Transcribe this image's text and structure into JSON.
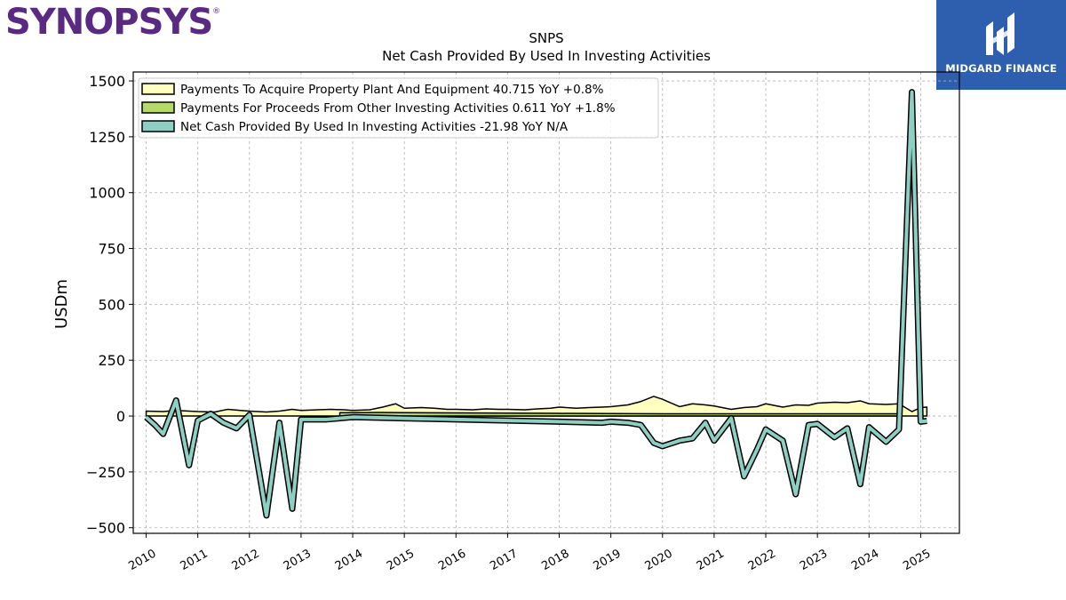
{
  "brand": {
    "logo_text": "SYNOPSYS",
    "trademark": "®"
  },
  "badge": {
    "name": "MIDGARD FINANCE",
    "bg_color": "#2d5fae"
  },
  "chart_data": {
    "type": "area",
    "title": "SNPS",
    "subtitle": "Net Cash Provided By Used In Investing Activities",
    "ylabel": "USDm",
    "xlabel": "",
    "xlim": [
      2009.75,
      2025.75
    ],
    "ylim": [
      -525,
      1540
    ],
    "grid": true,
    "legend_position": "top-left",
    "yticks": [
      1500,
      1250,
      1000,
      750,
      500,
      250,
      0,
      -250,
      -500
    ],
    "ytick_labels": [
      "1500",
      "1250",
      "1000",
      "750",
      "500",
      "250",
      "0",
      "−250",
      "−500"
    ],
    "xticks": [
      2010,
      2011,
      2012,
      2013,
      2014,
      2015,
      2016,
      2017,
      2018,
      2019,
      2020,
      2021,
      2022,
      2023,
      2024,
      2025
    ],
    "xtick_labels": [
      "2010",
      "2011",
      "2012",
      "2013",
      "2014",
      "2015",
      "2016",
      "2017",
      "2018",
      "2019",
      "2020",
      "2021",
      "2022",
      "2023",
      "2024",
      "2025"
    ],
    "series": [
      {
        "name": "Payments To Acquire Property Plant And Equipment",
        "legend_label": "Payments To Acquire Property Plant And Equipment  40.715 YoY +0.8%",
        "color": "#ffffc0",
        "points": [
          [
            2010.0,
            22
          ],
          [
            2010.33,
            20
          ],
          [
            2010.58,
            25
          ],
          [
            2010.83,
            22
          ],
          [
            2011.0,
            20
          ],
          [
            2011.33,
            18
          ],
          [
            2011.58,
            30
          ],
          [
            2011.83,
            25
          ],
          [
            2012.0,
            22
          ],
          [
            2012.33,
            18
          ],
          [
            2012.58,
            22
          ],
          [
            2012.83,
            30
          ],
          [
            2013.0,
            25
          ],
          [
            2013.33,
            28
          ],
          [
            2013.58,
            30
          ],
          [
            2013.83,
            28
          ],
          [
            2014.0,
            25
          ],
          [
            2014.33,
            28
          ],
          [
            2014.58,
            40
          ],
          [
            2014.83,
            55
          ],
          [
            2015.0,
            35
          ],
          [
            2015.33,
            38
          ],
          [
            2015.58,
            35
          ],
          [
            2015.83,
            30
          ],
          [
            2016.0,
            30
          ],
          [
            2016.33,
            28
          ],
          [
            2016.58,
            32
          ],
          [
            2016.83,
            30
          ],
          [
            2017.0,
            30
          ],
          [
            2017.33,
            28
          ],
          [
            2017.58,
            32
          ],
          [
            2017.83,
            35
          ],
          [
            2018.0,
            40
          ],
          [
            2018.33,
            35
          ],
          [
            2018.58,
            38
          ],
          [
            2018.83,
            40
          ],
          [
            2019.0,
            42
          ],
          [
            2019.33,
            50
          ],
          [
            2019.58,
            65
          ],
          [
            2019.83,
            88
          ],
          [
            2020.0,
            75
          ],
          [
            2020.33,
            42
          ],
          [
            2020.58,
            55
          ],
          [
            2020.83,
            50
          ],
          [
            2021.0,
            45
          ],
          [
            2021.33,
            30
          ],
          [
            2021.58,
            38
          ],
          [
            2021.83,
            42
          ],
          [
            2022.0,
            55
          ],
          [
            2022.33,
            40
          ],
          [
            2022.58,
            50
          ],
          [
            2022.83,
            48
          ],
          [
            2023.0,
            58
          ],
          [
            2023.33,
            62
          ],
          [
            2023.58,
            60
          ],
          [
            2023.83,
            68
          ],
          [
            2024.0,
            55
          ],
          [
            2024.33,
            52
          ],
          [
            2024.58,
            55
          ],
          [
            2024.83,
            20
          ],
          [
            2025.0,
            38
          ],
          [
            2025.12,
            40
          ]
        ]
      },
      {
        "name": "Payments For Proceeds From Other Investing Activities",
        "legend_label": "Payments For Proceeds From Other Investing Activities  0.611 YoY +1.8%",
        "color": "#b5d96b",
        "points": [
          [
            2013.75,
            0
          ],
          [
            2013.75,
            15
          ],
          [
            2014.0,
            15
          ],
          [
            2014.5,
            16
          ],
          [
            2015.0,
            15
          ],
          [
            2016.0,
            14
          ],
          [
            2017.0,
            13
          ],
          [
            2018.0,
            12
          ],
          [
            2019.0,
            11
          ],
          [
            2020.0,
            10
          ],
          [
            2021.0,
            10
          ],
          [
            2022.0,
            10
          ],
          [
            2023.0,
            10
          ],
          [
            2024.0,
            10
          ],
          [
            2024.58,
            10
          ],
          [
            2024.58,
            0
          ]
        ]
      },
      {
        "name": "Net Cash Provided By Used In Investing Activities",
        "legend_label": "Net Cash Provided By Used In Investing Activities  -21.98 YoY N/A",
        "color": "#8ecfc3",
        "points": [
          [
            2010.0,
            -5
          ],
          [
            2010.17,
            -40
          ],
          [
            2010.33,
            -80
          ],
          [
            2010.58,
            70
          ],
          [
            2010.83,
            -220
          ],
          [
            2011.0,
            -20
          ],
          [
            2011.25,
            10
          ],
          [
            2011.5,
            -30
          ],
          [
            2011.75,
            -55
          ],
          [
            2012.0,
            5
          ],
          [
            2012.33,
            -445
          ],
          [
            2012.58,
            -30
          ],
          [
            2012.83,
            -415
          ],
          [
            2013.0,
            -15
          ],
          [
            2013.5,
            -15
          ],
          [
            2013.75,
            -10
          ],
          [
            2014.0,
            -5
          ],
          [
            2015.0,
            -10
          ],
          [
            2016.0,
            -15
          ],
          [
            2017.0,
            -20
          ],
          [
            2018.0,
            -25
          ],
          [
            2018.83,
            -30
          ],
          [
            2019.0,
            -25
          ],
          [
            2019.33,
            -30
          ],
          [
            2019.58,
            -40
          ],
          [
            2019.83,
            -120
          ],
          [
            2020.0,
            -135
          ],
          [
            2020.33,
            -110
          ],
          [
            2020.58,
            -100
          ],
          [
            2020.83,
            -30
          ],
          [
            2021.0,
            -110
          ],
          [
            2021.33,
            -10
          ],
          [
            2021.58,
            -270
          ],
          [
            2021.83,
            -150
          ],
          [
            2022.0,
            -60
          ],
          [
            2022.33,
            -110
          ],
          [
            2022.58,
            -350
          ],
          [
            2022.83,
            -40
          ],
          [
            2023.0,
            -35
          ],
          [
            2023.33,
            -95
          ],
          [
            2023.58,
            -55
          ],
          [
            2023.83,
            -305
          ],
          [
            2024.0,
            -50
          ],
          [
            2024.33,
            -115
          ],
          [
            2024.58,
            -60
          ],
          [
            2024.83,
            1450
          ],
          [
            2025.0,
            -25
          ],
          [
            2025.12,
            -22
          ]
        ]
      }
    ]
  }
}
